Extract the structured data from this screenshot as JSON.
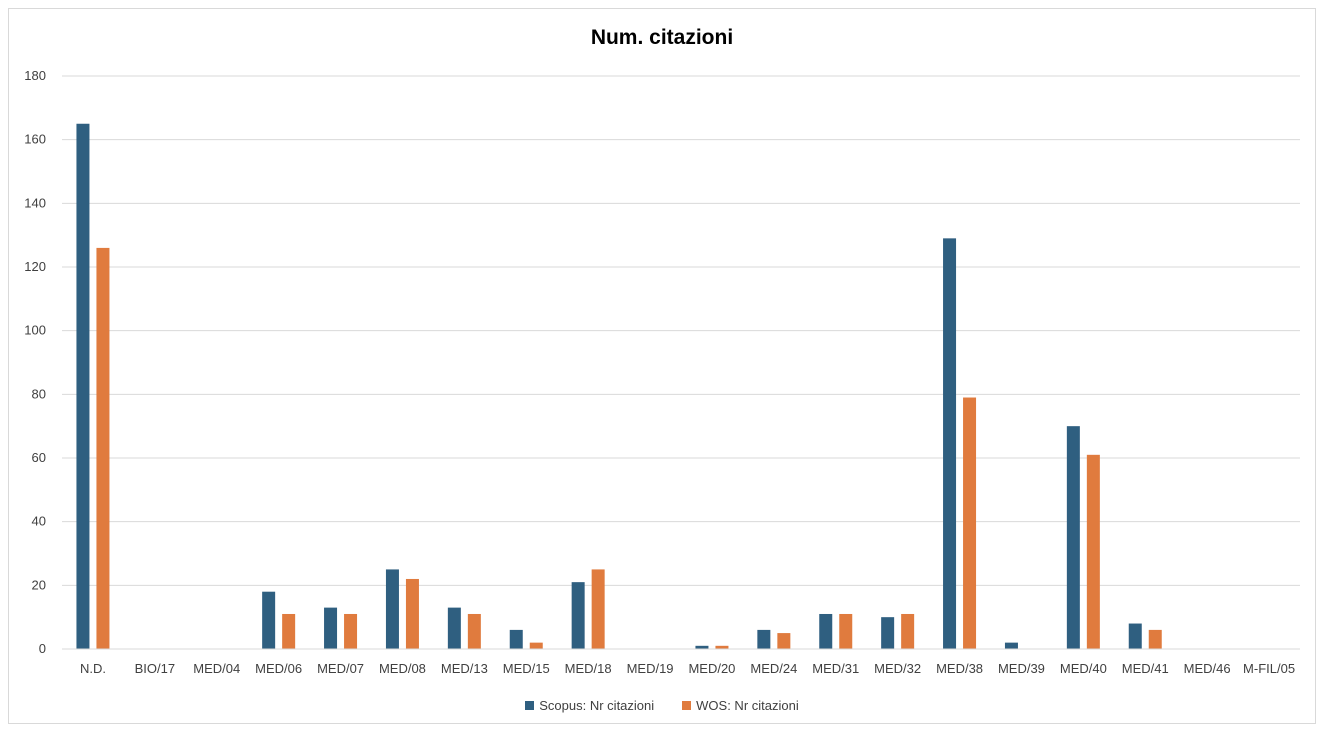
{
  "chart_data": {
    "type": "bar",
    "title": "Num. citazioni",
    "xlabel": "",
    "ylabel": "",
    "ylim": [
      0,
      180
    ],
    "yticks": [
      0,
      20,
      40,
      60,
      80,
      100,
      120,
      140,
      160,
      180
    ],
    "grid": true,
    "legend_position": "bottom",
    "categories": [
      "N.D.",
      "BIO/17",
      "MED/04",
      "MED/06",
      "MED/07",
      "MED/08",
      "MED/13",
      "MED/15",
      "MED/18",
      "MED/19",
      "MED/20",
      "MED/24",
      "MED/31",
      "MED/32",
      "MED/38",
      "MED/39",
      "MED/40",
      "MED/41",
      "MED/46",
      "M-FIL/05"
    ],
    "series": [
      {
        "name": "Scopus: Nr citazioni",
        "color": "#2f5f80",
        "values": [
          165,
          0,
          0,
          18,
          13,
          25,
          13,
          6,
          21,
          0,
          1,
          6,
          11,
          10,
          129,
          2,
          70,
          8,
          0,
          0
        ]
      },
      {
        "name": "WOS: Nr citazioni",
        "color": "#e07b3e",
        "values": [
          126,
          0,
          0,
          11,
          11,
          22,
          11,
          2,
          25,
          0,
          1,
          5,
          11,
          11,
          79,
          0,
          61,
          6,
          0,
          0
        ]
      }
    ]
  }
}
